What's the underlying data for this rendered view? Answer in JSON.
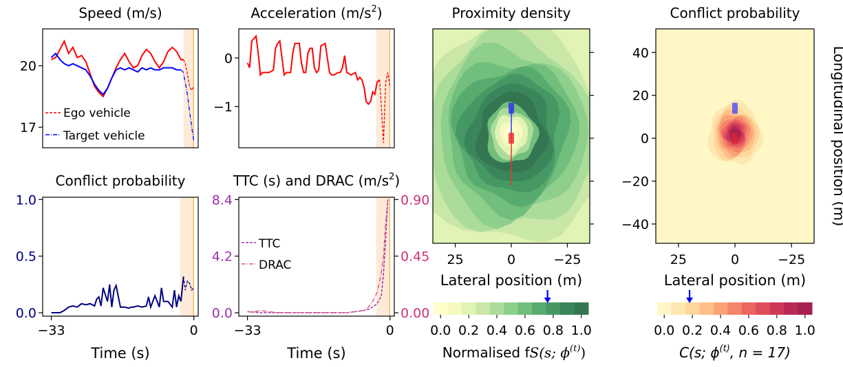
{
  "chart_data": [
    {
      "type": "line",
      "title": "Speed (m/s)",
      "xlabel": "",
      "ylabel": "",
      "xlim": [
        -35,
        1
      ],
      "ylim": [
        16.0,
        21.8
      ],
      "xticks": [],
      "yticks": [
        "20",
        "17"
      ],
      "ytick_values": [
        20,
        17
      ],
      "highlight_band": [
        -2.4,
        -0.3
      ],
      "event_line": -0.1,
      "legend": [
        "Ego vehicle",
        "Target vehicle"
      ],
      "series": [
        {
          "name": "Ego vehicle",
          "color": "#ff0000",
          "solid_until": -2.4,
          "x": [
            -33,
            -32,
            -31,
            -30,
            -29,
            -28,
            -27,
            -26,
            -25,
            -24,
            -23,
            -22,
            -21,
            -20,
            -19,
            -18,
            -17,
            -16,
            -15,
            -14,
            -13,
            -12,
            -11,
            -10,
            -9,
            -8,
            -7,
            -6,
            -5,
            -4,
            -3,
            -2.4,
            -2,
            -1.5,
            -1,
            -0.5,
            0
          ],
          "y": [
            20.3,
            20.4,
            20.8,
            21.2,
            20.6,
            20.9,
            20.4,
            20.5,
            20.2,
            19.6,
            19.0,
            18.7,
            18.5,
            18.9,
            19.4,
            19.9,
            20.3,
            20.6,
            20.2,
            19.9,
            20.0,
            20.5,
            20.8,
            20.6,
            20.2,
            19.9,
            20.2,
            20.7,
            20.9,
            20.7,
            20.3,
            20.3,
            20.1,
            19.6,
            19.0,
            18.8,
            19.0
          ]
        },
        {
          "name": "Target vehicle",
          "color": "#0000ff",
          "solid_until": -3.0,
          "x": [
            -33,
            -32,
            -31,
            -30,
            -29,
            -28,
            -27,
            -26,
            -25,
            -24,
            -23,
            -22,
            -21,
            -20,
            -19,
            -18,
            -17,
            -16,
            -15,
            -14,
            -13,
            -12,
            -11,
            -10,
            -9,
            -8,
            -7,
            -6,
            -5,
            -4,
            -3,
            -2.5,
            -2,
            -1.5,
            -1,
            -0.5,
            0
          ],
          "y": [
            20.4,
            20.6,
            20.3,
            20.1,
            20.0,
            20.1,
            20.0,
            19.9,
            19.8,
            19.5,
            19.1,
            18.8,
            18.6,
            18.9,
            19.4,
            19.8,
            19.9,
            19.8,
            19.9,
            19.8,
            19.7,
            19.9,
            19.8,
            19.9,
            19.8,
            19.8,
            19.9,
            19.9,
            19.9,
            19.8,
            19.8,
            19.7,
            19.2,
            18.6,
            17.8,
            17.0,
            16.3
          ]
        }
      ]
    },
    {
      "type": "line",
      "title": "Acceleration (m/s",
      "title_sup": "2",
      "title_end": ")",
      "xlabel": "",
      "ylabel": "",
      "xlim": [
        -35,
        1
      ],
      "ylim": [
        -1.85,
        0.6
      ],
      "xticks": [],
      "yticks": [
        "0",
        "−1"
      ],
      "ytick_values": [
        0,
        -1
      ],
      "highlight_band": [
        -3.2,
        -0.3
      ],
      "event_line": -0.1,
      "series": [
        {
          "name": "",
          "color": "#ff0000",
          "solid_until": -2.4,
          "x": [
            -33,
            -32.5,
            -32,
            -31.5,
            -31,
            -30.5,
            -30,
            -29.5,
            -29,
            -28,
            -27,
            -26.5,
            -26,
            -25.5,
            -25,
            -24.5,
            -24,
            -23,
            -22.5,
            -22,
            -21,
            -20.5,
            -20,
            -19.5,
            -19,
            -18.5,
            -18,
            -17.5,
            -17,
            -16.5,
            -16,
            -15,
            -14.5,
            -14,
            -13.5,
            -13,
            -12,
            -11.5,
            -11,
            -10.5,
            -10,
            -9,
            -8,
            -7.5,
            -7,
            -6.5,
            -6,
            -5.5,
            -5,
            -4.5,
            -4,
            -3.5,
            -3,
            -2.4,
            -2,
            -1.5,
            -1,
            -0.5,
            0
          ],
          "y": [
            -0.1,
            -0.2,
            0.35,
            0.4,
            0.45,
            0.1,
            -0.35,
            -0.3,
            -0.3,
            -0.3,
            -0.25,
            0.2,
            0.3,
            0.35,
            0.0,
            -0.35,
            -0.3,
            -0.3,
            0.1,
            0.3,
            0.3,
            -0.1,
            -0.3,
            -0.3,
            0.1,
            0.2,
            0.2,
            -0.2,
            -0.3,
            -0.25,
            0.25,
            0.3,
            0.0,
            -0.3,
            -0.35,
            -0.35,
            -0.3,
            -0.3,
            -0.2,
            0.05,
            -0.3,
            -0.35,
            -0.3,
            -0.45,
            -0.4,
            -0.45,
            -0.6,
            -0.9,
            -0.95,
            -0.9,
            -0.7,
            -0.75,
            -0.5,
            -0.45,
            -1.0,
            -1.75,
            -0.5,
            -0.3,
            -0.6
          ]
        }
      ]
    },
    {
      "type": "line",
      "title": "Conflict probability",
      "xlabel": "Time (s)",
      "ylabel": "",
      "xlim": [
        -35,
        1
      ],
      "ylim": [
        -0.03,
        1.02
      ],
      "xticks": [
        "−33",
        "0"
      ],
      "xtick_values": [
        -33,
        0
      ],
      "yticks": [
        "1.0",
        "0.5",
        "0.0"
      ],
      "ytick_values": [
        1.0,
        0.5,
        0.0
      ],
      "highlight_band": [
        -3.2,
        -0.3
      ],
      "event_line": -0.1,
      "series": [
        {
          "name": "",
          "color": "#000080",
          "solid_until": -2.4,
          "x": [
            -33,
            -31,
            -30,
            -29,
            -28,
            -27,
            -26,
            -25,
            -24,
            -23,
            -22.5,
            -22,
            -21.5,
            -21,
            -20,
            -19.5,
            -19,
            -18.5,
            -18,
            -17,
            -16,
            -15,
            -14.5,
            -14,
            -13,
            -12,
            -11,
            -10.5,
            -10,
            -9,
            -8,
            -7.5,
            -7,
            -6,
            -5,
            -4.5,
            -4,
            -3.5,
            -3,
            -2.4,
            -2,
            -1.5,
            -1,
            -0.5,
            0
          ],
          "y": [
            0.0,
            0.0,
            0.02,
            0.05,
            0.06,
            0.05,
            0.08,
            0.07,
            0.08,
            0.06,
            0.12,
            0.14,
            0.06,
            0.22,
            0.1,
            0.25,
            0.05,
            0.2,
            0.24,
            0.05,
            0.05,
            0.04,
            0.05,
            0.05,
            0.06,
            0.05,
            0.06,
            0.14,
            0.05,
            0.15,
            0.05,
            0.22,
            0.1,
            0.1,
            0.05,
            0.2,
            0.05,
            0.15,
            0.1,
            0.32,
            0.2,
            0.28,
            0.26,
            0.2,
            0.22
          ]
        }
      ]
    },
    {
      "type": "line",
      "title": "TTC (s) and DRAC (m/s",
      "title_sup": "2",
      "title_end": ")",
      "xlabel": "Time (s)",
      "ylabel": "",
      "xlim": [
        -35,
        1
      ],
      "ylim": [
        -0.03,
        1.02
      ],
      "xticks": [
        "−33",
        "0"
      ],
      "xtick_values": [
        -33,
        0
      ],
      "yticks_left": [
        "8.4",
        "4.2",
        "0.0"
      ],
      "yticks_right": [
        "0.90",
        "0.45",
        "0.00"
      ],
      "ytick_values": [
        1.0,
        0.5,
        0.0
      ],
      "left_axis_color": "#9933aa",
      "right_axis_color": "#cc3377",
      "highlight_band": [
        -3.2,
        -0.3
      ],
      "event_line": -0.1,
      "legend": [
        "TTC",
        "DRAC"
      ],
      "series": [
        {
          "name": "TTC",
          "color": "#9933aa",
          "x": [
            -33,
            -30,
            -25,
            -20,
            -15,
            -10,
            -8,
            -6,
            -5,
            -4,
            -3,
            -2,
            -1.5,
            -1,
            -0.5
          ],
          "y": [
            0.01,
            0.0,
            0.0,
            0.0,
            0.0,
            0.0,
            0.01,
            0.02,
            0.03,
            0.05,
            0.08,
            0.15,
            0.35,
            0.65,
            1.0
          ]
        },
        {
          "name": "DRAC",
          "color": "#dd5588",
          "x": [
            -33,
            -32,
            -30,
            -28,
            -26,
            -24,
            -22,
            -20,
            -18,
            -16,
            -14,
            -12,
            -10,
            -8,
            -6,
            -5,
            -4,
            -3,
            -2.5,
            -2,
            -1.5,
            -1,
            -0.5
          ],
          "y": [
            0.01,
            0.005,
            0.02,
            0.01,
            0.0,
            0.0,
            0.0,
            0.0,
            0.0,
            0.0,
            0.0,
            0.0,
            0.0,
            0.01,
            0.02,
            0.05,
            0.1,
            0.18,
            0.26,
            0.36,
            0.5,
            0.8,
            1.0
          ]
        }
      ]
    },
    {
      "type": "heatmap",
      "title": "Proximity density",
      "xlabel": "Lateral position (m)",
      "xticks": [
        "25",
        "0",
        "−25"
      ],
      "xtick_values": [
        25,
        0,
        -25
      ],
      "xlim": [
        35,
        -35
      ],
      "ylim": [
        -49,
        51
      ],
      "colorbar_label": "Normalised f",
      "colorbar_label_math": "S(s; ϕ",
      "colorbar_label_sup": "(t)",
      "colorbar_label_end": ")",
      "colorbar_ticks": [
        "0.0",
        "0.2",
        "0.4",
        "0.6",
        "0.8",
        "1.0"
      ],
      "colorbar_tick_values": [
        0,
        0.2,
        0.4,
        0.6,
        0.8,
        1.0
      ],
      "colorbar_marker": 0.76,
      "colors": [
        "#ffffcc",
        "#f4fac0",
        "#e2f3b6",
        "#c9e8a8",
        "#acdc9a",
        "#8ecf8c",
        "#71be7d",
        "#58ab6e",
        "#459864",
        "#3a855a",
        "#347652"
      ],
      "vehicles": [
        {
          "name": "Target vehicle",
          "x": 0,
          "y": 14,
          "color": "#3333ee"
        },
        {
          "name": "Ego vehicle",
          "x": 0,
          "y": 0,
          "color": "#ee3333"
        }
      ]
    },
    {
      "type": "heatmap",
      "title": "Conflict probability",
      "xlabel": "Lateral position (m)",
      "ylabel": "Longitudinal position (m)",
      "xticks": [
        "25",
        "0",
        "−25"
      ],
      "xtick_values": [
        25,
        0,
        -25
      ],
      "yticks": [
        "40",
        "20",
        "0",
        "−20",
        "−40"
      ],
      "ytick_values": [
        40,
        20,
        0,
        -20,
        -40
      ],
      "xlim": [
        35,
        -35
      ],
      "ylim": [
        -49,
        51
      ],
      "colorbar_label": "C(s; ϕ",
      "colorbar_label_sup": "(t)",
      "colorbar_label_end": ", n = 17)",
      "colorbar_ticks": [
        "0.0",
        "0.2",
        "0.4",
        "0.6",
        "0.8",
        "1.0"
      ],
      "colorbar_tick_values": [
        0,
        0.2,
        0.4,
        0.6,
        0.8,
        1.0
      ],
      "colorbar_marker": 0.18,
      "colors": [
        "#fff7c6",
        "#fde8b2",
        "#fdd79c",
        "#fcc088",
        "#f9a376",
        "#f58568",
        "#ec6660",
        "#df4c5a",
        "#cd3856",
        "#b82a55",
        "#a42151"
      ],
      "vehicles": [
        {
          "name": "Target vehicle",
          "x": 0,
          "y": 14,
          "color": "#5555ee"
        },
        {
          "name": "Ego vehicle",
          "x": 0,
          "y": 0,
          "color": "#dd2233"
        }
      ]
    }
  ]
}
